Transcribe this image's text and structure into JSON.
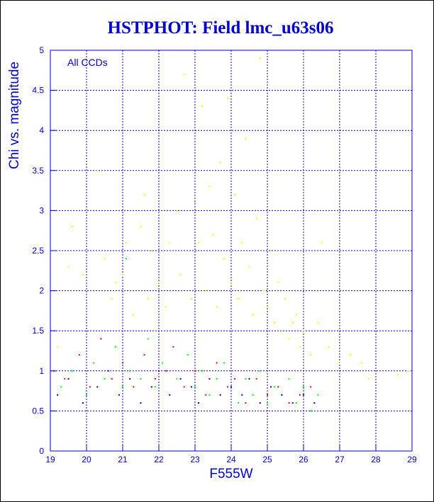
{
  "chart_data": {
    "type": "scatter",
    "title": "HSTPHOT: Field lmc_u63s06",
    "xlabel": "F555W",
    "ylabel": "Chi vs. magnitude",
    "annotation": "All CCDs",
    "xlim": [
      19,
      29
    ],
    "ylim": [
      0,
      5
    ],
    "xticks": [
      19,
      20,
      21,
      22,
      23,
      24,
      25,
      26,
      27,
      28,
      29
    ],
    "yticks": [
      0,
      0.5,
      1,
      1.5,
      2,
      2.5,
      3,
      3.5,
      4,
      4.5,
      5
    ],
    "ytick_labels": [
      "0",
      "0.5",
      "1",
      "1.5",
      "2",
      "2.5",
      "3",
      "3.5",
      "4",
      "4.5",
      "5"
    ],
    "grid": true,
    "colors": {
      "title": "#0000cc",
      "axis": "#0000cc",
      "grid": "#0000cc"
    },
    "series": [
      {
        "color": "#ffff00",
        "points": [
          [
            19.2,
            1.3
          ],
          [
            19.5,
            2.3
          ],
          [
            19.6,
            2.8
          ],
          [
            19.9,
            2.2
          ],
          [
            20.3,
            3.5
          ],
          [
            20.5,
            2.4
          ],
          [
            20.7,
            1.9
          ],
          [
            20.8,
            2.1
          ],
          [
            21.0,
            2.2
          ],
          [
            21.1,
            2.6
          ],
          [
            21.3,
            1.7
          ],
          [
            21.5,
            2.8
          ],
          [
            21.6,
            3.2
          ],
          [
            21.7,
            1.9
          ],
          [
            21.8,
            2.5
          ],
          [
            22.0,
            2.1
          ],
          [
            22.2,
            1.8
          ],
          [
            22.3,
            2.6
          ],
          [
            22.5,
            3.0
          ],
          [
            22.6,
            2.2
          ],
          [
            22.7,
            4.7
          ],
          [
            22.9,
            1.9
          ],
          [
            23.0,
            3.1
          ],
          [
            23.1,
            2.6
          ],
          [
            23.2,
            4.3
          ],
          [
            23.3,
            2.0
          ],
          [
            23.4,
            3.3
          ],
          [
            23.5,
            2.7
          ],
          [
            23.6,
            1.8
          ],
          [
            23.7,
            3.6
          ],
          [
            23.8,
            2.4
          ],
          [
            23.9,
            4.4
          ],
          [
            24.0,
            2.1
          ],
          [
            24.1,
            3.2
          ],
          [
            24.2,
            1.9
          ],
          [
            24.3,
            2.6
          ],
          [
            24.4,
            3.9
          ],
          [
            24.5,
            2.3
          ],
          [
            24.6,
            1.7
          ],
          [
            24.7,
            2.9
          ],
          [
            24.8,
            4.9
          ],
          [
            24.9,
            2.0
          ],
          [
            25.0,
            1.8
          ],
          [
            25.1,
            2.5
          ],
          [
            25.2,
            1.6
          ],
          [
            25.3,
            2.1
          ],
          [
            25.4,
            1.5
          ],
          [
            25.5,
            1.9
          ],
          [
            25.6,
            1.4
          ],
          [
            25.7,
            1.6
          ],
          [
            25.8,
            1.7
          ],
          [
            25.9,
            1.3
          ],
          [
            26.0,
            1.5
          ],
          [
            26.2,
            1.2
          ],
          [
            26.4,
            1.6
          ],
          [
            26.5,
            2.6
          ],
          [
            26.7,
            1.3
          ],
          [
            27.0,
            1.1
          ],
          [
            27.3,
            1.2
          ],
          [
            27.6,
            1.1
          ],
          [
            27.8,
            0.9
          ],
          [
            28.6,
            0.95
          ],
          [
            28.9,
            1.0
          ]
        ]
      },
      {
        "color": "#00ff00",
        "points": [
          [
            19.3,
            0.8
          ],
          [
            19.6,
            1.0
          ],
          [
            20.0,
            0.7
          ],
          [
            20.2,
            1.1
          ],
          [
            20.5,
            0.9
          ],
          [
            20.8,
            1.3
          ],
          [
            21.0,
            0.8
          ],
          [
            21.1,
            2.4
          ],
          [
            21.2,
            1.0
          ],
          [
            21.5,
            0.9
          ],
          [
            21.7,
            1.4
          ],
          [
            21.9,
            0.8
          ],
          [
            22.1,
            1.1
          ],
          [
            22.3,
            0.7
          ],
          [
            22.5,
            0.9
          ],
          [
            22.8,
            1.2
          ],
          [
            23.0,
            0.8
          ],
          [
            23.2,
            1.0
          ],
          [
            23.4,
            0.7
          ],
          [
            23.6,
            0.9
          ],
          [
            23.8,
            1.1
          ],
          [
            24.0,
            0.8
          ],
          [
            24.2,
            0.6
          ],
          [
            24.4,
            0.9
          ],
          [
            24.6,
            0.7
          ],
          [
            24.8,
            1.0
          ],
          [
            25.0,
            0.6
          ],
          [
            25.2,
            0.8
          ],
          [
            25.4,
            0.7
          ],
          [
            25.6,
            0.9
          ],
          [
            25.8,
            0.6
          ],
          [
            26.0,
            0.8
          ],
          [
            26.2,
            0.5
          ],
          [
            26.4,
            0.7
          ]
        ]
      },
      {
        "color": "#ff0000",
        "points": [
          [
            19.1,
            1.0
          ],
          [
            19.4,
            0.9
          ],
          [
            19.8,
            1.2
          ],
          [
            20.1,
            0.8
          ],
          [
            20.4,
            1.4
          ],
          [
            20.7,
            0.9
          ],
          [
            21.0,
            1.1
          ],
          [
            21.3,
            0.8
          ],
          [
            21.6,
            1.2
          ],
          [
            21.9,
            0.9
          ],
          [
            22.2,
            1.0
          ],
          [
            22.4,
            1.3
          ],
          [
            22.7,
            0.8
          ],
          [
            23.0,
            1.0
          ],
          [
            23.3,
            0.7
          ],
          [
            23.6,
            1.1
          ],
          [
            23.9,
            0.8
          ],
          [
            24.1,
            0.9
          ],
          [
            24.4,
            0.6
          ],
          [
            24.7,
            0.9
          ],
          [
            25.0,
            0.7
          ],
          [
            25.3,
            0.8
          ],
          [
            25.6,
            0.6
          ],
          [
            25.9,
            0.7
          ],
          [
            26.2,
            0.8
          ]
        ]
      },
      {
        "color": "#0000ff",
        "points": [
          [
            19.2,
            0.7
          ],
          [
            19.5,
            0.9
          ],
          [
            19.9,
            0.6
          ],
          [
            20.3,
            0.8
          ],
          [
            20.6,
            1.0
          ],
          [
            20.9,
            0.7
          ],
          [
            21.2,
            0.9
          ],
          [
            21.5,
            0.6
          ],
          [
            21.8,
            0.8
          ],
          [
            22.0,
            1.0
          ],
          [
            22.3,
            0.7
          ],
          [
            22.6,
            0.9
          ],
          [
            22.9,
            0.8
          ],
          [
            23.1,
            0.6
          ],
          [
            23.4,
            0.9
          ],
          [
            23.7,
            0.7
          ],
          [
            24.0,
            0.8
          ],
          [
            24.3,
            0.7
          ],
          [
            24.5,
            0.9
          ],
          [
            24.8,
            0.6
          ],
          [
            25.1,
            0.8
          ],
          [
            25.4,
            0.7
          ],
          [
            25.7,
            0.6
          ],
          [
            26.0,
            0.7
          ],
          [
            26.3,
            0.6
          ]
        ]
      }
    ]
  }
}
